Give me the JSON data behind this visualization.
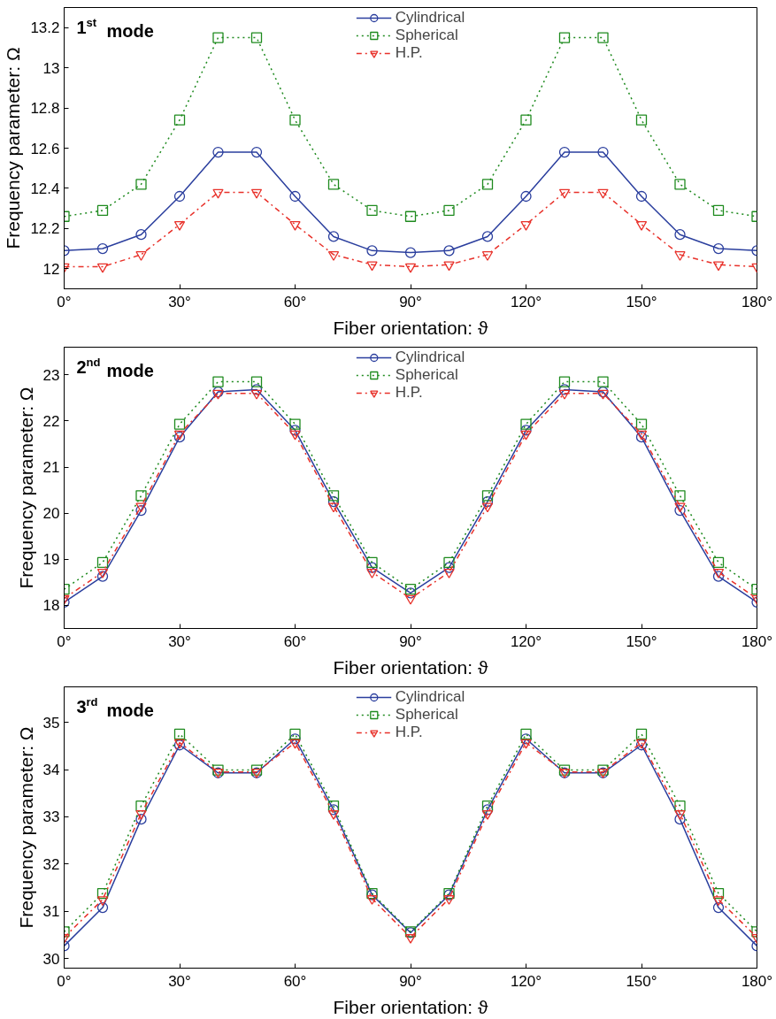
{
  "chart_data": [
    {
      "type": "line",
      "title": "1$^{st}$ mode",
      "xlabel": "Fiber orientation: ϑ",
      "ylabel": "Frequency parameter: Ω",
      "x": [
        0,
        10,
        20,
        30,
        40,
        50,
        60,
        70,
        80,
        90,
        100,
        110,
        120,
        130,
        140,
        150,
        160,
        170,
        180
      ],
      "xlim": [
        0,
        180
      ],
      "xticks": [
        {
          "value": 0,
          "label": "0°"
        },
        {
          "value": 30,
          "label": "30°"
        },
        {
          "value": 60,
          "label": "60°"
        },
        {
          "value": 90,
          "label": "90°"
        },
        {
          "value": 120,
          "label": "120°"
        },
        {
          "value": 150,
          "label": "150°"
        },
        {
          "value": 180,
          "label": "180°"
        }
      ],
      "ylim": [
        11.9,
        13.3
      ],
      "yticks": [
        12,
        12.2,
        12.4,
        12.6,
        12.8,
        13,
        13.2
      ],
      "grid": false,
      "legend": "top",
      "series": [
        {
          "name": "Cylindrical",
          "color": "#2b3f9e",
          "marker": "circle",
          "line_style": "solid",
          "values": [
            12.09,
            12.1,
            12.17,
            12.36,
            12.58,
            12.58,
            12.36,
            12.16,
            12.09,
            12.08,
            12.09,
            12.16,
            12.36,
            12.58,
            12.58,
            12.36,
            12.17,
            12.1,
            12.09
          ]
        },
        {
          "name": "Spherical",
          "color": "#1e8a1e",
          "marker": "square",
          "line_style": "dotted",
          "values": [
            12.26,
            12.29,
            12.42,
            12.74,
            13.15,
            13.15,
            12.74,
            12.42,
            12.29,
            12.26,
            12.29,
            12.42,
            12.74,
            13.15,
            13.15,
            12.74,
            12.42,
            12.29,
            12.26
          ]
        },
        {
          "name": "H.P.",
          "color": "#e8312a",
          "marker": "triangle",
          "line_style": "dashdot",
          "values": [
            12.01,
            12.01,
            12.07,
            12.22,
            12.38,
            12.38,
            12.22,
            12.07,
            12.02,
            12.01,
            12.02,
            12.07,
            12.22,
            12.38,
            12.38,
            12.22,
            12.07,
            12.02,
            12.01
          ]
        }
      ]
    },
    {
      "type": "line",
      "title": "2$^{nd}$ mode",
      "xlabel": "Fiber orientation: ϑ",
      "ylabel": "Frequency parameter: Ω",
      "x": [
        0,
        10,
        20,
        30,
        40,
        50,
        60,
        70,
        80,
        90,
        100,
        110,
        120,
        130,
        140,
        150,
        160,
        170,
        180
      ],
      "xlim": [
        0,
        180
      ],
      "xticks": [
        {
          "value": 0,
          "label": "0°"
        },
        {
          "value": 30,
          "label": "30°"
        },
        {
          "value": 60,
          "label": "60°"
        },
        {
          "value": 90,
          "label": "90°"
        },
        {
          "value": 120,
          "label": "120°"
        },
        {
          "value": 150,
          "label": "150°"
        },
        {
          "value": 180,
          "label": "180°"
        }
      ],
      "ylim": [
        17.5,
        23.6
      ],
      "yticks": [
        18,
        19,
        20,
        21,
        22,
        23
      ],
      "grid": false,
      "legend": "top",
      "series": [
        {
          "name": "Cylindrical",
          "color": "#2b3f9e",
          "marker": "circle",
          "line_style": "solid",
          "values": [
            18.07,
            18.63,
            20.06,
            21.65,
            22.63,
            22.68,
            21.8,
            20.25,
            18.82,
            18.27,
            18.82,
            20.25,
            21.8,
            22.68,
            22.63,
            21.65,
            20.06,
            18.63,
            18.07
          ]
        },
        {
          "name": "Spherical",
          "color": "#1e8a1e",
          "marker": "square",
          "line_style": "dotted",
          "values": [
            18.35,
            18.93,
            20.38,
            21.93,
            22.85,
            22.85,
            21.93,
            20.38,
            18.93,
            18.35,
            18.93,
            20.38,
            21.93,
            22.85,
            22.85,
            21.93,
            20.38,
            18.93,
            18.35
          ]
        },
        {
          "name": "H.P.",
          "color": "#e8312a",
          "marker": "triangle",
          "line_style": "dashdot",
          "values": [
            18.15,
            18.72,
            20.15,
            21.72,
            22.6,
            22.6,
            21.72,
            20.15,
            18.72,
            18.15,
            18.72,
            20.15,
            21.72,
            22.6,
            22.6,
            21.72,
            20.15,
            18.72,
            18.15
          ]
        }
      ]
    },
    {
      "type": "line",
      "title": "3$^{rd}$ mode",
      "xlabel": "Fiber orientation: ϑ",
      "ylabel": "Frequency parameter: Ω",
      "x": [
        0,
        10,
        20,
        30,
        40,
        50,
        60,
        70,
        80,
        90,
        100,
        110,
        120,
        130,
        140,
        150,
        160,
        170,
        180
      ],
      "xlim": [
        0,
        180
      ],
      "xticks": [
        {
          "value": 0,
          "label": "0°"
        },
        {
          "value": 30,
          "label": "30°"
        },
        {
          "value": 60,
          "label": "60°"
        },
        {
          "value": 90,
          "label": "90°"
        },
        {
          "value": 120,
          "label": "120°"
        },
        {
          "value": 150,
          "label": "150°"
        },
        {
          "value": 180,
          "label": "180°"
        }
      ],
      "ylim": [
        29.8,
        35.75
      ],
      "yticks": [
        30,
        31,
        32,
        33,
        34,
        35
      ],
      "grid": false,
      "legend": "top",
      "series": [
        {
          "name": "Cylindrical",
          "color": "#2b3f9e",
          "marker": "circle",
          "line_style": "solid",
          "values": [
            30.27,
            31.08,
            32.95,
            34.52,
            33.93,
            33.93,
            34.65,
            33.15,
            31.35,
            30.55,
            31.35,
            33.15,
            34.65,
            33.93,
            33.93,
            34.52,
            32.95,
            31.08,
            30.27
          ]
        },
        {
          "name": "Spherical",
          "color": "#1e8a1e",
          "marker": "square",
          "line_style": "dotted",
          "values": [
            30.57,
            31.38,
            33.23,
            34.75,
            33.99,
            33.99,
            34.75,
            33.23,
            31.38,
            30.57,
            31.38,
            33.23,
            34.75,
            33.99,
            33.99,
            34.75,
            33.23,
            31.38,
            30.57
          ]
        },
        {
          "name": "H.P.",
          "color": "#e8312a",
          "marker": "triangle",
          "line_style": "dashdot",
          "values": [
            30.45,
            31.25,
            33.07,
            34.57,
            33.95,
            33.95,
            34.57,
            33.07,
            31.27,
            30.45,
            31.27,
            33.07,
            34.57,
            33.95,
            33.95,
            34.57,
            33.07,
            31.25,
            30.45
          ]
        }
      ]
    }
  ]
}
